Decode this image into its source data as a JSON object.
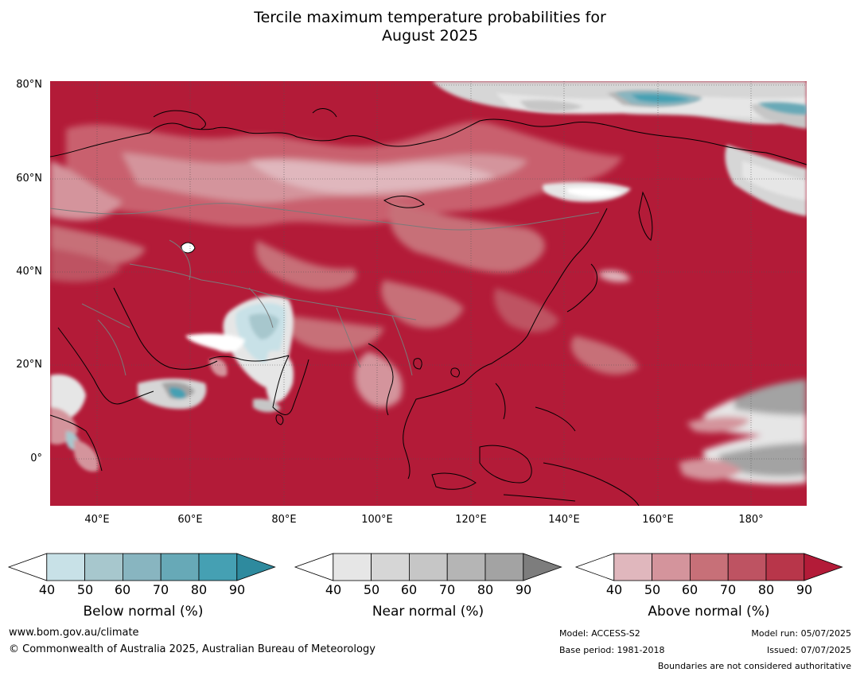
{
  "title": {
    "line1": "Tercile maximum temperature probabilities for",
    "line2": "August 2025"
  },
  "map": {
    "lat_labels": [
      "80°N",
      "60°N",
      "40°N",
      "20°N",
      "0°"
    ],
    "lon_labels": [
      "40°E",
      "60°E",
      "80°E",
      "100°E",
      "120°E",
      "140°E",
      "160°E",
      "180°"
    ],
    "ocean_color": "#b31b38",
    "land_outline_color": "#000000",
    "border_color": "#7a7a7a"
  },
  "colorbars": [
    {
      "name": "below",
      "title": "Below normal (%)",
      "ticks": [
        "40",
        "50",
        "60",
        "70",
        "80",
        "90"
      ],
      "colors": [
        "#ffffff",
        "#c8e1e7",
        "#a7c7cd",
        "#88b5c0",
        "#67a9b7",
        "#45a0b3",
        "#2e8a9e"
      ]
    },
    {
      "name": "near",
      "title": "Near normal (%)",
      "ticks": [
        "40",
        "50",
        "60",
        "70",
        "80",
        "90"
      ],
      "colors": [
        "#ffffff",
        "#e6e6e6",
        "#d6d6d6",
        "#c6c6c6",
        "#b5b5b5",
        "#a3a3a3",
        "#7d7d7d"
      ]
    },
    {
      "name": "above",
      "title": "Above normal (%)",
      "ticks": [
        "40",
        "50",
        "60",
        "70",
        "80",
        "90"
      ],
      "colors": [
        "#ffffff",
        "#e0b7bd",
        "#d4949c",
        "#c77078",
        "#be5362",
        "#b8364a",
        "#b31b38"
      ]
    }
  ],
  "footer": {
    "website": "www.bom.gov.au/climate",
    "copyright": "© Commonwealth of Australia 2025, Australian Bureau of Meteorology",
    "model": "Model: ACCESS-S2",
    "base_period": "Base period: 1981-2018",
    "model_run": "Model run: 05/07/2025",
    "issued": "Issued: 07/07/2025",
    "disclaimer": "Boundaries are not considered authoritative"
  }
}
